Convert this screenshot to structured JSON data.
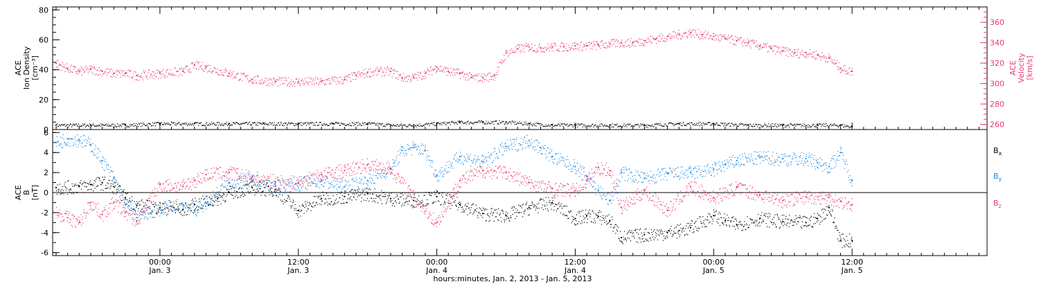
{
  "colors": {
    "density": "#000000",
    "velocity": "#e8396b",
    "bx": "#000000",
    "by": "#1a87e0",
    "bz": "#e8396b",
    "axis": "#000000"
  },
  "x_axis": {
    "ticks": [
      {
        "time": "00:00",
        "date": "Jan. 3",
        "hour": 24
      },
      {
        "time": "12:00",
        "date": "Jan. 3",
        "hour": 36
      },
      {
        "time": "00:00",
        "date": "Jan. 4",
        "hour": 48
      },
      {
        "time": "12:00",
        "date": "Jan. 4",
        "hour": 60
      },
      {
        "time": "00:00",
        "date": "Jan. 5",
        "hour": 72
      },
      {
        "time": "12:00",
        "date": "Jan. 5",
        "hour": 84
      }
    ],
    "range_hours": [
      14.7,
      95.7
    ],
    "label": "hours:minutes, Jan.  2, 2013  -  Jan.  5, 2013"
  },
  "chart_data": [
    {
      "type": "scatter",
      "panel": "top",
      "left_axis_title": [
        "ACE",
        "Ion Density",
        "[cm⁻³]"
      ],
      "right_axis_title": [
        "ACE",
        "Velocity",
        "[km/s]"
      ],
      "ylim_left": [
        0,
        82
      ],
      "ylim_right": [
        255,
        375
      ],
      "left_ticks": [
        "0",
        "20",
        "40",
        "60",
        "80"
      ],
      "right_ticks": [
        "260",
        "280",
        "300",
        "320",
        "340",
        "360"
      ],
      "series": [
        {
          "axis": "left",
          "color_key": "density",
          "x": [
            15,
            18,
            21,
            24,
            27,
            30,
            33,
            36,
            39,
            42,
            44,
            46,
            48,
            50,
            52,
            54,
            56,
            58,
            60,
            63,
            66,
            69,
            72,
            75,
            78,
            81,
            83,
            84
          ],
          "y": [
            3,
            3,
            3,
            4,
            4,
            4,
            4,
            4,
            4,
            4,
            3,
            3,
            4,
            5,
            5,
            5,
            4,
            3,
            3,
            3,
            3,
            4,
            4,
            3,
            3,
            3,
            3,
            2
          ]
        },
        {
          "axis": "right",
          "color_key": "velocity",
          "x": [
            15,
            16,
            17,
            18,
            19,
            20,
            21,
            22,
            24,
            26,
            27,
            28,
            30,
            32,
            34,
            36,
            38,
            40,
            41,
            42,
            43,
            44,
            45,
            46,
            47,
            48,
            49,
            50,
            51,
            52,
            53,
            54,
            55,
            56,
            57,
            58,
            59,
            60,
            61,
            62,
            63,
            64,
            65,
            66,
            67,
            68,
            69,
            70,
            71,
            72,
            73,
            74,
            75,
            76,
            77,
            78,
            79,
            80,
            81,
            82,
            83,
            84
          ],
          "y": [
            320,
            315,
            312,
            314,
            312,
            310,
            310,
            308,
            310,
            312,
            318,
            316,
            310,
            304,
            302,
            302,
            302,
            304,
            308,
            311,
            312,
            312,
            306,
            306,
            310,
            316,
            312,
            310,
            306,
            306,
            308,
            330,
            334,
            336,
            335,
            336,
            336,
            337,
            337,
            338,
            339,
            340,
            340,
            342,
            344,
            346,
            348,
            350,
            348,
            346,
            344,
            342,
            340,
            337,
            334,
            332,
            330,
            330,
            328,
            325,
            315,
            312
          ]
        }
      ]
    },
    {
      "type": "scatter",
      "panel": "bottom",
      "left_axis_title": [
        "ACE",
        "B",
        "[nT]"
      ],
      "ylim": [
        -6.3,
        6.3
      ],
      "y_ticks": [
        "-6",
        "-4",
        "-2",
        "0",
        "2",
        "4",
        "6"
      ],
      "zero_line": true,
      "series": [
        {
          "name": "B",
          "sub": "x",
          "color_key": "bx",
          "x": [
            15,
            17,
            18,
            19,
            20,
            21,
            22,
            24,
            26,
            27,
            29,
            30,
            32,
            34,
            36,
            38,
            40,
            42,
            44,
            46,
            48,
            50,
            52,
            54,
            56,
            58,
            60,
            61,
            62,
            63,
            64,
            66,
            68,
            69,
            70,
            72,
            73,
            74,
            76,
            78,
            80,
            81,
            82,
            83,
            84
          ],
          "y": [
            0.5,
            0.6,
            0.8,
            1.0,
            0.6,
            -0.5,
            -1.3,
            -1.5,
            -1.7,
            -1.2,
            -0.6,
            0.0,
            0.5,
            0.3,
            -1.8,
            -0.6,
            -0.4,
            -0.1,
            -0.6,
            -0.8,
            -0.4,
            -1.2,
            -2.1,
            -2.3,
            -1.5,
            -1.0,
            -2.6,
            -2.3,
            -2.4,
            -2.8,
            -4.5,
            -4.2,
            -4.0,
            -3.8,
            -3.5,
            -2.3,
            -2.8,
            -3.2,
            -2.6,
            -2.9,
            -3.0,
            -2.6,
            -1.5,
            -4.8,
            -4.8
          ]
        },
        {
          "name": "B",
          "sub": "y",
          "color_key": "by",
          "x": [
            15,
            16,
            17,
            18,
            19,
            20,
            21,
            22,
            24,
            26,
            27,
            28,
            30,
            32,
            34,
            36,
            38,
            40,
            42,
            44,
            45,
            46,
            47,
            48,
            50,
            52,
            54,
            56,
            57,
            58,
            60,
            61,
            62,
            63,
            64,
            66,
            68,
            70,
            72,
            73,
            74,
            76,
            78,
            80,
            81,
            82,
            83,
            84
          ],
          "y": [
            5.0,
            5.4,
            5.3,
            4.8,
            3.2,
            1.4,
            -1.2,
            -2.5,
            -1.6,
            -1.2,
            -1.8,
            -1.0,
            1.0,
            1.2,
            0.6,
            0.9,
            1.2,
            0.6,
            1.2,
            2.4,
            4.2,
            4.5,
            4.2,
            1.7,
            3.6,
            3.1,
            4.6,
            5.2,
            4.5,
            3.6,
            2.6,
            1.6,
            0.2,
            -0.8,
            2.0,
            1.4,
            1.9,
            2.0,
            2.3,
            2.8,
            3.2,
            3.5,
            3.4,
            3.4,
            3.0,
            2.6,
            4.0,
            1.2
          ]
        },
        {
          "name": "B",
          "sub": "z",
          "color_key": "bz",
          "x": [
            15,
            16,
            17,
            18,
            19,
            20,
            21,
            22,
            24,
            26,
            27,
            28,
            30,
            32,
            34,
            36,
            38,
            40,
            42,
            44,
            46,
            48,
            50,
            52,
            54,
            56,
            58,
            60,
            61,
            62,
            63,
            64,
            66,
            68,
            70,
            72,
            74,
            76,
            78,
            80,
            82,
            83,
            84
          ],
          "y": [
            -2.0,
            -2.5,
            -3.0,
            -1.0,
            -2.2,
            -1.0,
            -2.0,
            -2.8,
            0.8,
            0.6,
            1.2,
            1.8,
            2.0,
            1.5,
            1.1,
            1.0,
            1.8,
            2.2,
            2.8,
            2.4,
            -0.5,
            -3.0,
            1.2,
            2.2,
            2.0,
            1.0,
            0.4,
            0.2,
            1.2,
            2.5,
            2.2,
            -1.5,
            0.2,
            -1.8,
            0.6,
            -0.5,
            0.5,
            -0.2,
            -0.8,
            -0.4,
            -0.5,
            -0.9,
            -1.2
          ]
        }
      ]
    }
  ]
}
